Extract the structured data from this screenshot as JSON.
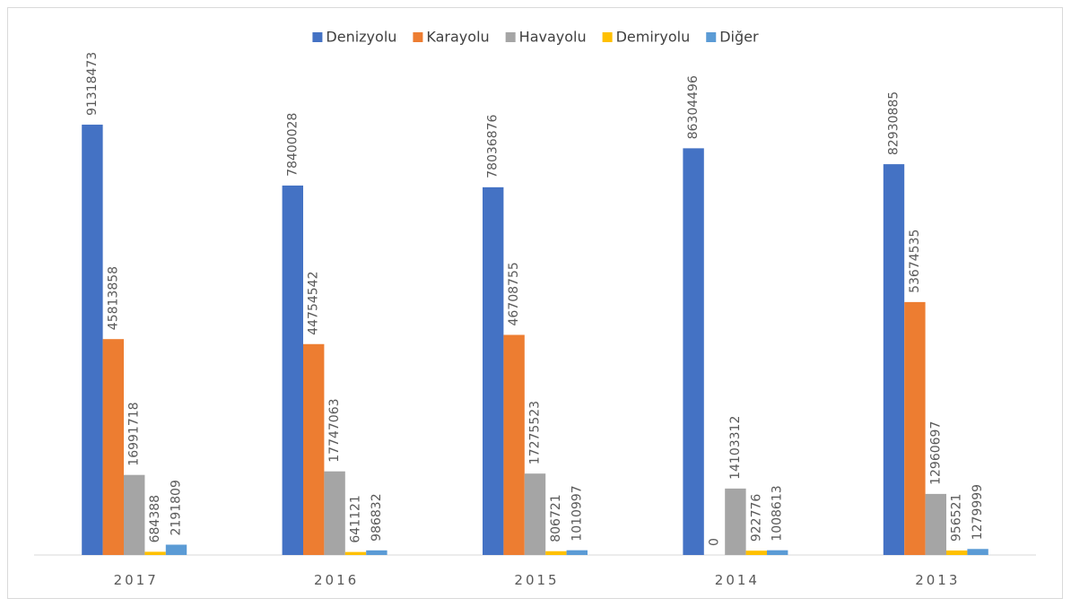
{
  "chart_data": {
    "type": "bar",
    "categories": [
      "2017",
      "2016",
      "2015",
      "2014",
      "2013"
    ],
    "series": [
      {
        "name": "Denizyolu",
        "color": "#4472c4",
        "values": [
          91318473,
          78400028,
          78036876,
          86304496,
          82930885
        ]
      },
      {
        "name": "Karayolu",
        "color": "#ed7d31",
        "values": [
          45813858,
          44754542,
          46708755,
          0,
          53674535
        ]
      },
      {
        "name": "Havayolu",
        "color": "#a5a5a5",
        "values": [
          16991718,
          17747063,
          17275523,
          14103312,
          12960697
        ]
      },
      {
        "name": "Demiryolu",
        "color": "#ffc000",
        "values": [
          684388,
          641121,
          806721,
          922776,
          956521
        ]
      },
      {
        "name": "Diğer",
        "color": "#5b9bd5",
        "values": [
          2191809,
          986832,
          1010997,
          1008613,
          1279999
        ]
      }
    ],
    "ylim": [
      0,
      100000000
    ],
    "legend": "top"
  }
}
